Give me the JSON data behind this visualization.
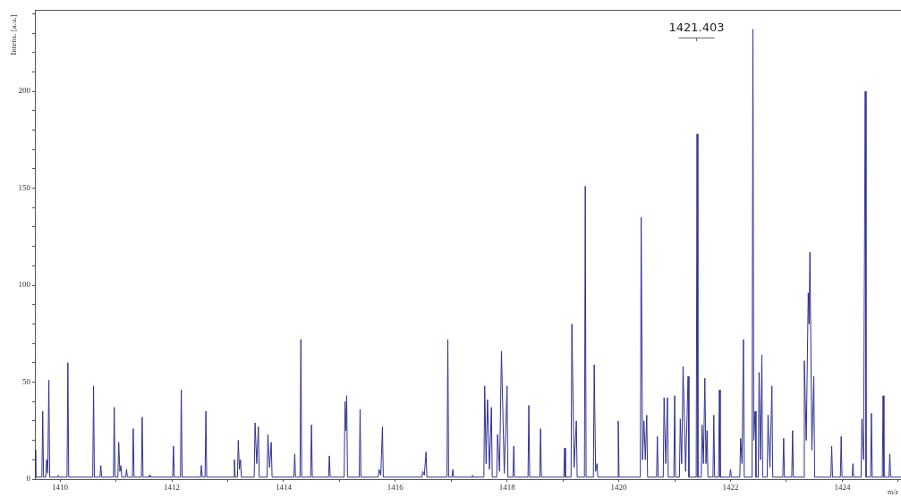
{
  "chart_data": {
    "type": "line",
    "xlabel": "m/z",
    "ylabel": "Intens. [a.u.]",
    "xlim": [
      1409.55,
      1425.05
    ],
    "xticks": [
      1410,
      {
        "value": 1411,
        "label": null
      },
      1412,
      {
        "value": 1413,
        "label": null
      },
      1414,
      {
        "value": 1415,
        "label": null
      },
      1416,
      {
        "value": 1417,
        "label": null
      },
      1418,
      {
        "value": 1419,
        "label": null
      },
      1420,
      {
        "value": 1421,
        "label": null
      },
      1422,
      {
        "value": 1423,
        "label": null
      },
      1424,
      {
        "value": 1425,
        "label": null
      }
    ],
    "ylim": [
      0,
      242
    ],
    "yticks": [
      0,
      {
        "value": 10,
        "label": null
      },
      {
        "value": 20,
        "label": null
      },
      {
        "value": 30,
        "label": null
      },
      {
        "value": 40,
        "label": null
      },
      50,
      {
        "value": 60,
        "label": null
      },
      {
        "value": 70,
        "label": null
      },
      {
        "value": 80,
        "label": null
      },
      {
        "value": 90,
        "label": null
      },
      100,
      {
        "value": 110,
        "label": null
      },
      {
        "value": 120,
        "label": null
      },
      {
        "value": 130,
        "label": null
      },
      {
        "value": 140,
        "label": null
      },
      150,
      {
        "value": 160,
        "label": null
      },
      {
        "value": 170,
        "label": null
      },
      {
        "value": 180,
        "label": null
      },
      {
        "value": 190,
        "label": null
      },
      200,
      {
        "value": 210,
        "label": null
      },
      {
        "value": 220,
        "label": null
      },
      {
        "value": 230,
        "label": null
      },
      {
        "value": 240,
        "label": null
      }
    ],
    "grid": false,
    "legend": false,
    "marker": "none",
    "line_style": "solid",
    "annotations": [
      "1421.403"
    ],
    "series": [
      {
        "color": "#2e3192",
        "x": [
          1409.55,
          1409.565,
          1409.675,
          1409.69,
          1409.705,
          1409.745,
          1409.76,
          1409.78,
          1409.8,
          1409.815,
          1409.955,
          1409.97,
          1409.985,
          1410.125,
          1410.14,
          1410.155,
          1410.585,
          1410.6,
          1410.615,
          1410.715,
          1410.73,
          1410.745,
          1410.955,
          1410.97,
          1410.985,
          1411.035,
          1411.05,
          1411.07,
          1411.09,
          1411.105,
          1411.175,
          1411.19,
          1411.205,
          1411.295,
          1411.31,
          1411.325,
          1411.455,
          1411.47,
          1411.485,
          1411.585,
          1411.6,
          1411.615,
          1412.015,
          1412.03,
          1412.045,
          1412.155,
          1412.17,
          1412.185,
          1412.515,
          1412.53,
          1412.545,
          1412.595,
          1412.61,
          1412.625,
          1413.105,
          1413.12,
          1413.135,
          1413.175,
          1413.19,
          1413.21,
          1413.23,
          1413.245,
          1413.475,
          1413.49,
          1413.52,
          1413.55,
          1413.565,
          1413.705,
          1413.72,
          1413.75,
          1413.78,
          1413.795,
          1414.185,
          1414.2,
          1414.215,
          1414.295,
          1414.31,
          1414.325,
          1414.485,
          1414.5,
          1414.515,
          1414.805,
          1414.82,
          1414.835,
          1415.085,
          1415.1,
          1415.115,
          1415.13,
          1415.145,
          1415.355,
          1415.37,
          1415.385,
          1415.695,
          1415.71,
          1415.74,
          1415.77,
          1415.785,
          1416.475,
          1416.49,
          1416.52,
          1416.55,
          1416.565,
          1416.925,
          1416.94,
          1416.955,
          1417.015,
          1417.03,
          1417.045,
          1417.365,
          1417.38,
          1417.395,
          1417.585,
          1417.6,
          1417.625,
          1417.65,
          1417.685,
          1417.72,
          1417.735,
          1417.815,
          1417.83,
          1417.865,
          1417.9,
          1417.95,
          1418.0,
          1418.015,
          1418.105,
          1418.12,
          1418.135,
          1418.375,
          1418.39,
          1418.405,
          1418.585,
          1418.6,
          1418.615,
          1419.015,
          1419.03,
          1419.045,
          1419.145,
          1419.16,
          1419.2,
          1419.24,
          1419.255,
          1419.385,
          1419.4,
          1419.415,
          1419.545,
          1419.56,
          1419.585,
          1419.61,
          1419.625,
          1419.975,
          1419.99,
          1420.005,
          1420.385,
          1420.4,
          1420.425,
          1420.45,
          1420.475,
          1420.5,
          1420.515,
          1420.675,
          1420.69,
          1420.705,
          1420.795,
          1420.81,
          1420.84,
          1420.87,
          1420.885,
          1420.985,
          1421.0,
          1421.015,
          1421.085,
          1421.1,
          1421.125,
          1421.15,
          1421.195,
          1421.24,
          1421.255,
          1421.385,
          1421.4,
          1421.415,
          1421.475,
          1421.49,
          1421.515,
          1421.54,
          1421.56,
          1421.58,
          1421.595,
          1421.685,
          1421.7,
          1421.715,
          1421.785,
          1421.8,
          1421.815,
          1421.985,
          1422.0,
          1422.015,
          1422.165,
          1422.18,
          1422.205,
          1422.23,
          1422.245,
          1422.385,
          1422.4,
          1422.415,
          1422.44,
          1422.455,
          1422.495,
          1422.51,
          1422.535,
          1422.56,
          1422.575,
          1422.655,
          1422.67,
          1422.705,
          1422.74,
          1422.755,
          1422.935,
          1422.95,
          1422.965,
          1423.095,
          1423.11,
          1423.125,
          1423.305,
          1423.32,
          1423.355,
          1423.39,
          1423.405,
          1423.42,
          1423.455,
          1423.49,
          1423.505,
          1423.795,
          1423.81,
          1423.825,
          1423.965,
          1423.98,
          1423.995,
          1424.175,
          1424.19,
          1424.205,
          1424.335,
          1424.35,
          1424.38,
          1424.41,
          1424.425,
          1424.505,
          1424.52,
          1424.535,
          1424.715,
          1424.73,
          1424.745,
          1424.835,
          1424.85,
          1424.865,
          1425.05
        ],
        "values": [
          15,
          1,
          1,
          35,
          1,
          1,
          10,
          3,
          51,
          1,
          1,
          2,
          1,
          1,
          60,
          1,
          1,
          48,
          1,
          1,
          7,
          1,
          1,
          37,
          1,
          1,
          19,
          4,
          7,
          1,
          1,
          5,
          1,
          1,
          26,
          1,
          1,
          32,
          1,
          1,
          2,
          1,
          1,
          17,
          1,
          1,
          46,
          1,
          1,
          7,
          1,
          1,
          35,
          1,
          1,
          10,
          1,
          1,
          20,
          5,
          10,
          1,
          1,
          29,
          8,
          27,
          1,
          1,
          23,
          6,
          19,
          1,
          1,
          13,
          1,
          1,
          72,
          1,
          1,
          28,
          1,
          1,
          12,
          1,
          1,
          40,
          25,
          43,
          1,
          1,
          36,
          1,
          1,
          5,
          2,
          27,
          1,
          1,
          4,
          2,
          14,
          1,
          1,
          72,
          1,
          1,
          5,
          1,
          1,
          2,
          1,
          1,
          48,
          8,
          41,
          5,
          37,
          1,
          1,
          23,
          4,
          66,
          3,
          48,
          1,
          1,
          17,
          1,
          1,
          38,
          1,
          1,
          26,
          1,
          1,
          16,
          1,
          1,
          80,
          6,
          30,
          1,
          1,
          151,
          1,
          1,
          59,
          4,
          8,
          1,
          1,
          30,
          1,
          1,
          135,
          10,
          30,
          10,
          33,
          1,
          1,
          22,
          1,
          1,
          42,
          8,
          42,
          1,
          1,
          43,
          1,
          1,
          31,
          8,
          58,
          4,
          53,
          1,
          1,
          178,
          1,
          1,
          28,
          8,
          52,
          8,
          25,
          1,
          1,
          33,
          1,
          1,
          46,
          1,
          1,
          5,
          1,
          1,
          21,
          8,
          72,
          1,
          1,
          232,
          20,
          35,
          1,
          1,
          55,
          10,
          64,
          1,
          1,
          33,
          6,
          48,
          1,
          1,
          21,
          1,
          1,
          25,
          1,
          1,
          61,
          20,
          96,
          80,
          117,
          15,
          53,
          1,
          1,
          17,
          1,
          1,
          22,
          1,
          1,
          8,
          1,
          1,
          31,
          10,
          200,
          1,
          1,
          34,
          1,
          1,
          43,
          1,
          1,
          13,
          1,
          1
        ]
      }
    ]
  }
}
